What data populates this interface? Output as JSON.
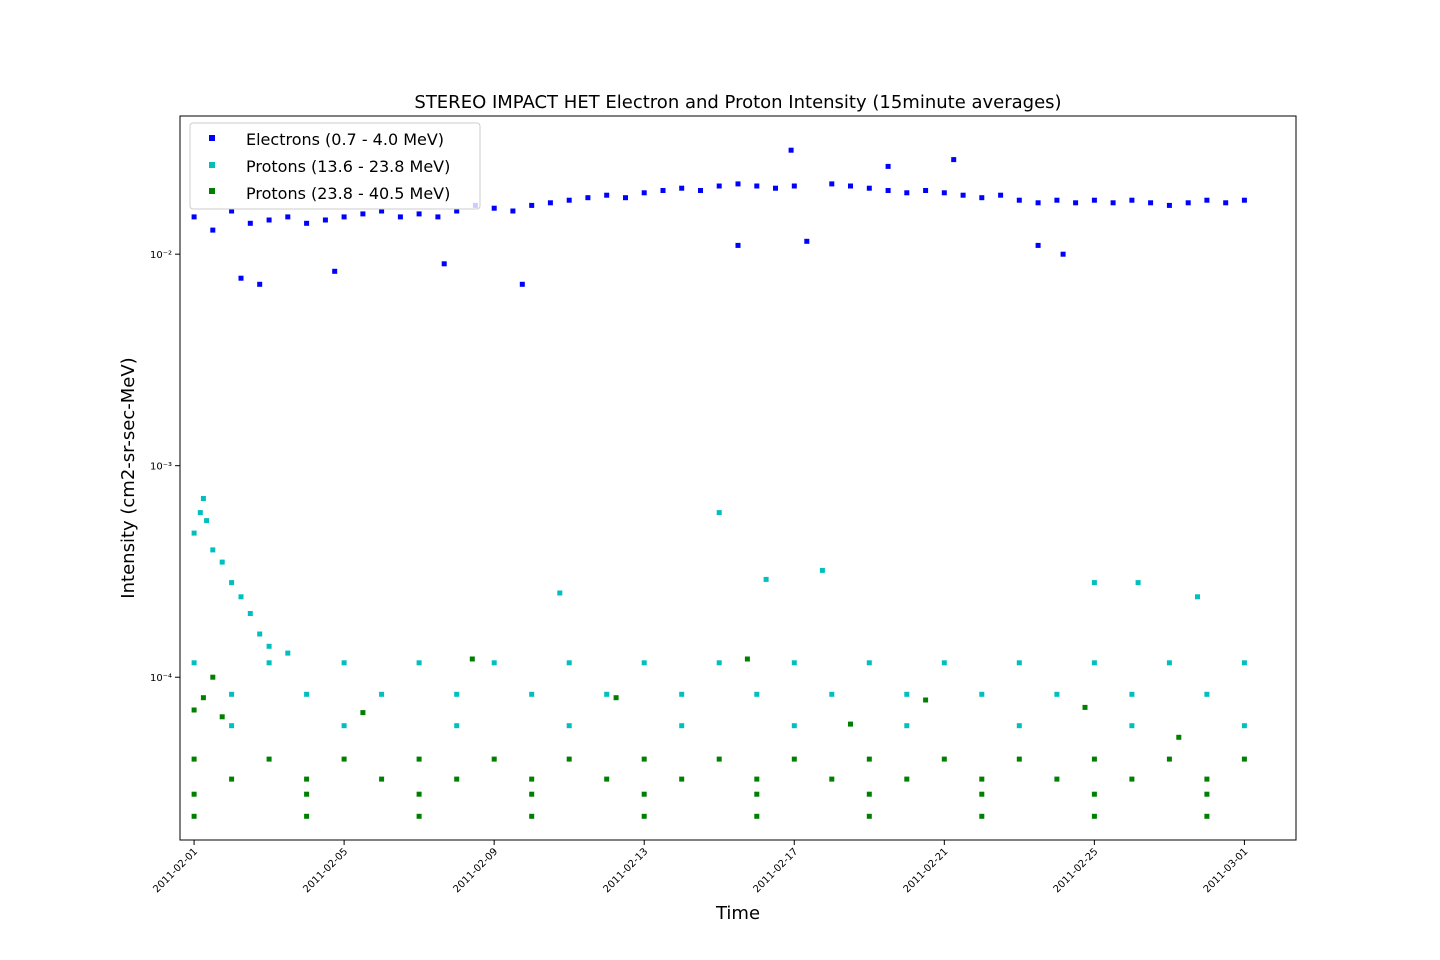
{
  "chart_data": {
    "type": "scatter",
    "title": "STEREO IMPACT HET Electron and Proton Intensity (15minute averages)",
    "xlabel": "Time",
    "ylabel": "Intensity (cm2-sr-sec-MeV)",
    "yscale": "log",
    "ylim": [
      1.7e-05,
      0.045
    ],
    "xlim": [
      "2011-01-31T15:00",
      "2011-03-02T09:00"
    ],
    "grid": false,
    "legend_position": "top-left",
    "x_ticks": [
      "2011-02-01",
      "2011-02-05",
      "2011-02-09",
      "2011-02-13",
      "2011-02-17",
      "2011-02-21",
      "2011-02-25",
      "2011-03-01"
    ],
    "y_ticks": [
      {
        "value": 0.0001,
        "label": "10⁻⁴"
      },
      {
        "value": 0.001,
        "label": "10⁻³"
      },
      {
        "value": 0.01,
        "label": "10⁻²"
      }
    ],
    "sampling_note": "",
    "series": [
      {
        "name": "Electrons (0.7 - 4.0 MeV)",
        "color": "#0000ff",
        "marker": "square",
        "points": [
          [
            "2011-02-01",
            0.015
          ],
          [
            "2011-02-01T12:00",
            0.013
          ],
          [
            "2011-02-02",
            0.016
          ],
          [
            "2011-02-02T12:00",
            0.014
          ],
          [
            "2011-02-03",
            0.0145
          ],
          [
            "2011-02-03T12:00",
            0.015
          ],
          [
            "2011-02-04",
            0.014
          ],
          [
            "2011-02-04T12:00",
            0.0145
          ],
          [
            "2011-02-05",
            0.015
          ],
          [
            "2011-02-05T12:00",
            0.0155
          ],
          [
            "2011-02-06",
            0.016
          ],
          [
            "2011-02-06T12:00",
            0.015
          ],
          [
            "2011-02-07",
            0.0155
          ],
          [
            "2011-02-07T12:00",
            0.015
          ],
          [
            "2011-02-08",
            0.016
          ],
          [
            "2011-02-08T12:00",
            0.017
          ],
          [
            "2011-02-09",
            0.0165
          ],
          [
            "2011-02-09T12:00",
            0.016
          ],
          [
            "2011-02-10",
            0.017
          ],
          [
            "2011-02-10T12:00",
            0.0175
          ],
          [
            "2011-02-11",
            0.018
          ],
          [
            "2011-02-11T12:00",
            0.0185
          ],
          [
            "2011-02-12",
            0.019
          ],
          [
            "2011-02-12T12:00",
            0.0185
          ],
          [
            "2011-02-13",
            0.0195
          ],
          [
            "2011-02-13T12:00",
            0.02
          ],
          [
            "2011-02-14",
            0.0205
          ],
          [
            "2011-02-14T12:00",
            0.02
          ],
          [
            "2011-02-15",
            0.021
          ],
          [
            "2011-02-15T12:00",
            0.0215
          ],
          [
            "2011-02-16",
            0.021
          ],
          [
            "2011-02-16T12:00",
            0.0205
          ],
          [
            "2011-02-17",
            0.021
          ],
          [
            "2011-02-18",
            0.0215
          ],
          [
            "2011-02-18T12:00",
            0.021
          ],
          [
            "2011-02-19",
            0.0205
          ],
          [
            "2011-02-19T12:00",
            0.02
          ],
          [
            "2011-02-20",
            0.0195
          ],
          [
            "2011-02-20T12:00",
            0.02
          ],
          [
            "2011-02-21",
            0.0195
          ],
          [
            "2011-02-21T12:00",
            0.019
          ],
          [
            "2011-02-22",
            0.0185
          ],
          [
            "2011-02-22T12:00",
            0.019
          ],
          [
            "2011-02-23",
            0.018
          ],
          [
            "2011-02-23T12:00",
            0.0175
          ],
          [
            "2011-02-24",
            0.018
          ],
          [
            "2011-02-24T12:00",
            0.0175
          ],
          [
            "2011-02-25",
            0.018
          ],
          [
            "2011-02-25T12:00",
            0.0175
          ],
          [
            "2011-02-26",
            0.018
          ],
          [
            "2011-02-26T12:00",
            0.0175
          ],
          [
            "2011-02-27",
            0.017
          ],
          [
            "2011-02-27T12:00",
            0.0175
          ],
          [
            "2011-02-28",
            0.018
          ],
          [
            "2011-02-28T12:00",
            0.0175
          ],
          [
            "2011-03-01",
            0.018
          ],
          [
            "2011-02-02T06:00",
            0.0077
          ],
          [
            "2011-02-02T18:00",
            0.0072
          ],
          [
            "2011-02-04T18:00",
            0.0083
          ],
          [
            "2011-02-09T18:00",
            0.0072
          ],
          [
            "2011-02-16T22:00",
            0.031
          ],
          [
            "2011-02-07T16:00",
            0.009
          ],
          [
            "2011-02-15T12:00",
            0.011
          ],
          [
            "2011-02-17T08:00",
            0.0115
          ],
          [
            "2011-02-19T12:00",
            0.026
          ],
          [
            "2011-02-21T06:00",
            0.028
          ],
          [
            "2011-02-23T12:00",
            0.011
          ],
          [
            "2011-02-24T04:00",
            0.01
          ]
        ]
      },
      {
        "name": "Protons (13.6 - 23.8 MeV)",
        "color": "#00bfbf",
        "marker": "square",
        "points": [
          [
            "2011-02-01",
            0.00048
          ],
          [
            "2011-02-01T04:00",
            0.0006
          ],
          [
            "2011-02-01T06:00",
            0.0007
          ],
          [
            "2011-02-01T08:00",
            0.00055
          ],
          [
            "2011-02-01T12:00",
            0.0004
          ],
          [
            "2011-02-01T18:00",
            0.00035
          ],
          [
            "2011-02-02",
            0.00028
          ],
          [
            "2011-02-02T06:00",
            0.00024
          ],
          [
            "2011-02-02T12:00",
            0.0002
          ],
          [
            "2011-02-02T18:00",
            0.00016
          ],
          [
            "2011-02-03",
            0.00014
          ],
          [
            "2011-02-03T12:00",
            0.00013
          ],
          [
            "2011-02-01",
            0.000117
          ],
          [
            "2011-02-03",
            0.000117
          ],
          [
            "2011-02-05",
            0.000117
          ],
          [
            "2011-02-07",
            0.000117
          ],
          [
            "2011-02-09",
            0.000117
          ],
          [
            "2011-02-11",
            0.000117
          ],
          [
            "2011-02-13",
            0.000117
          ],
          [
            "2011-02-15",
            0.000117
          ],
          [
            "2011-02-17",
            0.000117
          ],
          [
            "2011-02-19",
            0.000117
          ],
          [
            "2011-02-21",
            0.000117
          ],
          [
            "2011-02-23",
            0.000117
          ],
          [
            "2011-02-25",
            0.000117
          ],
          [
            "2011-02-27",
            0.000117
          ],
          [
            "2011-03-01",
            0.000117
          ],
          [
            "2011-02-02",
            8.3e-05
          ],
          [
            "2011-02-04",
            8.3e-05
          ],
          [
            "2011-02-06",
            8.3e-05
          ],
          [
            "2011-02-08",
            8.3e-05
          ],
          [
            "2011-02-10",
            8.3e-05
          ],
          [
            "2011-02-12",
            8.3e-05
          ],
          [
            "2011-02-14",
            8.3e-05
          ],
          [
            "2011-02-16",
            8.3e-05
          ],
          [
            "2011-02-18",
            8.3e-05
          ],
          [
            "2011-02-20",
            8.3e-05
          ],
          [
            "2011-02-22",
            8.3e-05
          ],
          [
            "2011-02-24",
            8.3e-05
          ],
          [
            "2011-02-26",
            8.3e-05
          ],
          [
            "2011-02-28",
            8.3e-05
          ],
          [
            "2011-02-02",
            5.9e-05
          ],
          [
            "2011-02-05",
            5.9e-05
          ],
          [
            "2011-02-08",
            5.9e-05
          ],
          [
            "2011-02-11",
            5.9e-05
          ],
          [
            "2011-02-14",
            5.9e-05
          ],
          [
            "2011-02-17",
            5.9e-05
          ],
          [
            "2011-02-20",
            5.9e-05
          ],
          [
            "2011-02-23",
            5.9e-05
          ],
          [
            "2011-02-26",
            5.9e-05
          ],
          [
            "2011-02-29",
            5.9e-05
          ],
          [
            "2011-02-15",
            0.0006
          ],
          [
            "2011-02-17T18:00",
            0.00032
          ],
          [
            "2011-02-16T06:00",
            0.00029
          ],
          [
            "2011-02-25",
            0.00028
          ],
          [
            "2011-02-26T04:00",
            0.00028
          ],
          [
            "2011-02-10T18:00",
            0.00025
          ],
          [
            "2011-02-27T18:00",
            0.00024
          ]
        ]
      },
      {
        "name": "Protons (23.8 - 40.5 MeV)",
        "color": "#008000",
        "marker": "square",
        "points": [
          [
            "2011-02-01",
            7e-05
          ],
          [
            "2011-02-01T06:00",
            8e-05
          ],
          [
            "2011-02-01T12:00",
            0.0001
          ],
          [
            "2011-02-01T18:00",
            6.5e-05
          ],
          [
            "2011-02-01",
            4.1e-05
          ],
          [
            "2011-02-03",
            4.1e-05
          ],
          [
            "2011-02-05",
            4.1e-05
          ],
          [
            "2011-02-07",
            4.1e-05
          ],
          [
            "2011-02-09",
            4.1e-05
          ],
          [
            "2011-02-11",
            4.1e-05
          ],
          [
            "2011-02-13",
            4.1e-05
          ],
          [
            "2011-02-15",
            4.1e-05
          ],
          [
            "2011-02-17",
            4.1e-05
          ],
          [
            "2011-02-19",
            4.1e-05
          ],
          [
            "2011-02-21",
            4.1e-05
          ],
          [
            "2011-02-23",
            4.1e-05
          ],
          [
            "2011-02-25",
            4.1e-05
          ],
          [
            "2011-02-27",
            4.1e-05
          ],
          [
            "2011-03-01",
            4.1e-05
          ],
          [
            "2011-02-02",
            3.3e-05
          ],
          [
            "2011-02-04",
            3.3e-05
          ],
          [
            "2011-02-06",
            3.3e-05
          ],
          [
            "2011-02-08",
            3.3e-05
          ],
          [
            "2011-02-10",
            3.3e-05
          ],
          [
            "2011-02-12",
            3.3e-05
          ],
          [
            "2011-02-14",
            3.3e-05
          ],
          [
            "2011-02-16",
            3.3e-05
          ],
          [
            "2011-02-18",
            3.3e-05
          ],
          [
            "2011-02-20",
            3.3e-05
          ],
          [
            "2011-02-22",
            3.3e-05
          ],
          [
            "2011-02-24",
            3.3e-05
          ],
          [
            "2011-02-26",
            3.3e-05
          ],
          [
            "2011-02-28",
            3.3e-05
          ],
          [
            "2011-02-01",
            2.8e-05
          ],
          [
            "2011-02-04",
            2.8e-05
          ],
          [
            "2011-02-07",
            2.8e-05
          ],
          [
            "2011-02-10",
            2.8e-05
          ],
          [
            "2011-02-13",
            2.8e-05
          ],
          [
            "2011-02-16",
            2.8e-05
          ],
          [
            "2011-02-19",
            2.8e-05
          ],
          [
            "2011-02-22",
            2.8e-05
          ],
          [
            "2011-02-25",
            2.8e-05
          ],
          [
            "2011-02-28",
            2.8e-05
          ],
          [
            "2011-02-01",
            2.2e-05
          ],
          [
            "2011-02-04",
            2.2e-05
          ],
          [
            "2011-02-07",
            2.2e-05
          ],
          [
            "2011-02-10",
            2.2e-05
          ],
          [
            "2011-02-13",
            2.2e-05
          ],
          [
            "2011-02-16",
            2.2e-05
          ],
          [
            "2011-02-19",
            2.2e-05
          ],
          [
            "2011-02-22",
            2.2e-05
          ],
          [
            "2011-02-25",
            2.2e-05
          ],
          [
            "2011-02-28",
            2.2e-05
          ],
          [
            "2011-02-08T10:00",
            0.000122
          ],
          [
            "2011-02-15T18:00",
            0.000122
          ],
          [
            "2011-02-12T06:00",
            8e-05
          ],
          [
            "2011-02-20T12:00",
            7.8e-05
          ],
          [
            "2011-02-24T18:00",
            7.2e-05
          ],
          [
            "2011-02-05T12:00",
            6.8e-05
          ],
          [
            "2011-02-18T12:00",
            6e-05
          ],
          [
            "2011-02-27T06:00",
            5.2e-05
          ]
        ]
      }
    ]
  }
}
